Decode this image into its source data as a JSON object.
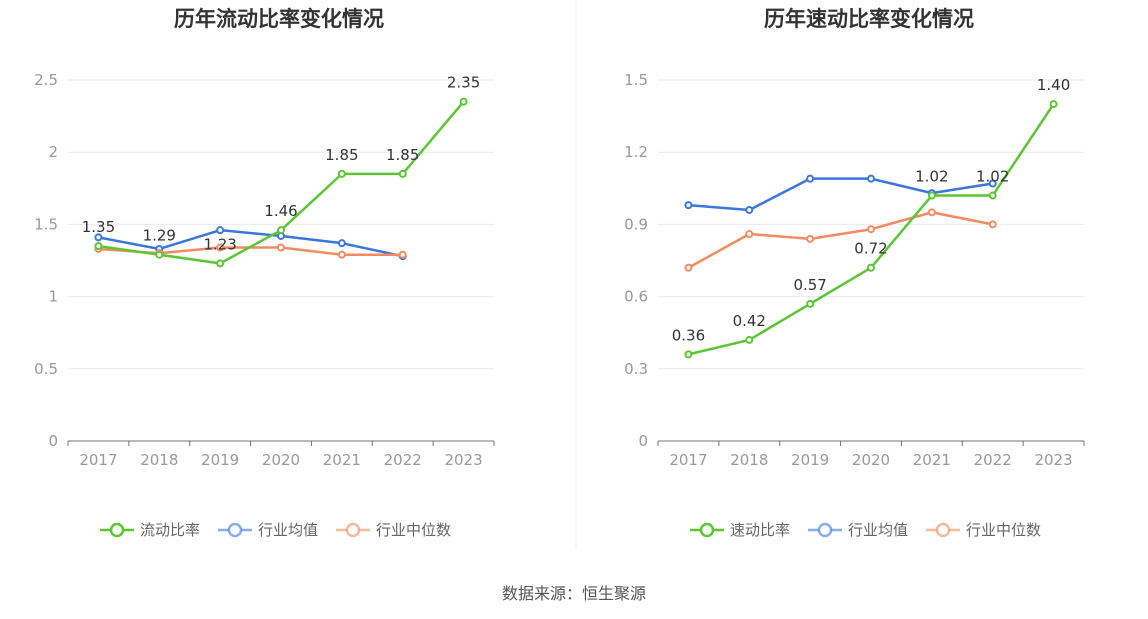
{
  "source_text": "数据来源：恒生聚源",
  "chart_data": [
    {
      "type": "line",
      "title": "历年流动比率变化情况",
      "categories": [
        "2017",
        "2018",
        "2019",
        "2020",
        "2021",
        "2022",
        "2023"
      ],
      "ylim": [
        0,
        2.5
      ],
      "yticks": [
        "0",
        "0.5",
        "1",
        "1.5",
        "2",
        "2.5"
      ],
      "ytick_values": [
        0,
        0.5,
        1,
        1.5,
        2,
        2.5
      ],
      "grid": true,
      "legend_position": "bottom",
      "series": [
        {
          "name": "流动比率",
          "color": "#5cc534",
          "labeled": true,
          "values": [
            1.35,
            1.29,
            1.23,
            1.46,
            1.85,
            1.85,
            2.35
          ],
          "labels": [
            "1.35",
            "1.29",
            "1.23",
            "1.46",
            "1.85",
            "1.85",
            "2.35"
          ]
        },
        {
          "name": "行业均值",
          "color": "#3b76dc",
          "labeled": false,
          "values": [
            1.41,
            1.33,
            1.46,
            1.42,
            1.37,
            1.28,
            null
          ]
        },
        {
          "name": "行业中位数",
          "color": "#f28c60",
          "labeled": false,
          "values": [
            1.33,
            1.3,
            1.34,
            1.34,
            1.29,
            1.29,
            null
          ]
        }
      ]
    },
    {
      "type": "line",
      "title": "历年速动比率变化情况",
      "categories": [
        "2017",
        "2018",
        "2019",
        "2020",
        "2021",
        "2022",
        "2023"
      ],
      "ylim": [
        0,
        1.5
      ],
      "yticks": [
        "0",
        "0.3",
        "0.6",
        "0.9",
        "1.2",
        "1.5"
      ],
      "ytick_values": [
        0,
        0.3,
        0.6,
        0.9,
        1.2,
        1.5
      ],
      "grid": true,
      "legend_position": "bottom",
      "series": [
        {
          "name": "速动比率",
          "color": "#5cc534",
          "labeled": true,
          "values": [
            0.36,
            0.42,
            0.57,
            0.72,
            1.02,
            1.02,
            1.4
          ],
          "labels": [
            "0.36",
            "0.42",
            "0.57",
            "0.72",
            "1.02",
            "1.02",
            "1.40"
          ]
        },
        {
          "name": "行业均值",
          "color": "#3b76dc",
          "labeled": false,
          "values": [
            0.98,
            0.96,
            1.09,
            1.09,
            1.03,
            1.07,
            null
          ]
        },
        {
          "name": "行业中位数",
          "color": "#f28c60",
          "labeled": false,
          "values": [
            0.72,
            0.86,
            0.84,
            0.88,
            0.95,
            0.9,
            null
          ]
        }
      ]
    }
  ]
}
